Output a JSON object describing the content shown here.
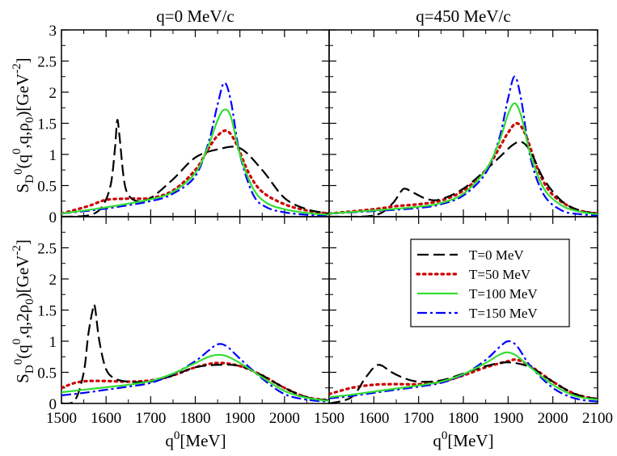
{
  "chart_data": {
    "type": "line",
    "panel_titles": [
      "q=0 MeV/c",
      "q=450 MeV/c"
    ],
    "ylabel_top": "S_D^0(q^0,q,ρ_0)[GeV^-2]",
    "ylabel_bottom": "S_D^0(q^0,q,2ρ_0)[GeV^-2]",
    "xlabel": "q^0[MeV]",
    "xlim": [
      1500,
      2100
    ],
    "ylim": [
      0,
      3
    ],
    "x_ticks": [
      "1500",
      "1600",
      "1700",
      "1800",
      "1900",
      "2000",
      "1500",
      "1600",
      "1700",
      "1800",
      "1900",
      "2000",
      "2100"
    ],
    "y_ticks_top": [
      "0",
      "0.5",
      "1",
      "1.5",
      "2",
      "2.5",
      "3"
    ],
    "y_ticks_bottom": [
      "0",
      "0.5",
      "1",
      "1.5",
      "2",
      "2.5"
    ],
    "legend_position": "lower-right panel, upper right",
    "series_styles": [
      {
        "name": "T=0 MeV",
        "color": "#000000",
        "dash": "dashed"
      },
      {
        "name": "T=50 MeV",
        "color": "#cc0000",
        "dash": "dotted"
      },
      {
        "name": "T=100 MeV",
        "color": "#33dd33",
        "dash": "solid"
      },
      {
        "name": "T=150 MeV",
        "color": "#0000ff",
        "dash": "dash-dot"
      }
    ],
    "panels": [
      {
        "row": 0,
        "col": 0,
        "series": [
          {
            "name": "T=0 MeV",
            "x": [
              1500,
              1560,
              1590,
              1610,
              1620,
              1625,
              1630,
              1640,
              1650,
              1670,
              1700,
              1750,
              1800,
              1850,
              1900,
              1950,
              2000,
              2050,
              2100
            ],
            "y": [
              0.0,
              0.02,
              0.15,
              0.5,
              1.1,
              1.55,
              1.3,
              0.6,
              0.35,
              0.25,
              0.3,
              0.6,
              0.95,
              1.08,
              1.1,
              0.75,
              0.3,
              0.12,
              0.05
            ]
          },
          {
            "name": "T=50 MeV",
            "x": [
              1500,
              1560,
              1600,
              1650,
              1700,
              1750,
              1800,
              1830,
              1850,
              1870,
              1890,
              1920,
              1950,
              2000,
              2050,
              2100
            ],
            "y": [
              0.05,
              0.17,
              0.27,
              0.29,
              0.3,
              0.42,
              0.75,
              1.1,
              1.3,
              1.38,
              1.2,
              0.7,
              0.4,
              0.2,
              0.1,
              0.05
            ]
          },
          {
            "name": "T=100 MeV",
            "x": [
              1500,
              1600,
              1700,
              1750,
              1800,
              1830,
              1850,
              1865,
              1880,
              1900,
              1930,
              1960,
              2000,
              2050,
              2100
            ],
            "y": [
              0.05,
              0.15,
              0.28,
              0.4,
              0.7,
              1.15,
              1.55,
              1.72,
              1.6,
              1.0,
              0.45,
              0.22,
              0.12,
              0.06,
              0.03
            ]
          },
          {
            "name": "T=150 MeV",
            "x": [
              1500,
              1600,
              1700,
              1750,
              1800,
              1830,
              1850,
              1865,
              1880,
              1900,
              1930,
              1960,
              2000,
              2050,
              2100
            ],
            "y": [
              0.05,
              0.13,
              0.25,
              0.37,
              0.65,
              1.2,
              1.8,
              2.15,
              1.85,
              1.0,
              0.35,
              0.15,
              0.07,
              0.03,
              0.02
            ]
          }
        ]
      },
      {
        "row": 0,
        "col": 1,
        "series": [
          {
            "name": "T=0 MeV",
            "x": [
              1500,
              1600,
              1640,
              1660,
              1670,
              1690,
              1720,
              1750,
              1800,
              1850,
              1880,
              1910,
              1930,
              1950,
              1980,
              2020,
              2060,
              2100
            ],
            "y": [
              0.0,
              0.02,
              0.2,
              0.4,
              0.45,
              0.38,
              0.28,
              0.28,
              0.45,
              0.75,
              0.95,
              1.15,
              1.2,
              1.05,
              0.6,
              0.25,
              0.1,
              0.05
            ]
          },
          {
            "name": "T=50 MeV",
            "x": [
              1500,
              1600,
              1650,
              1700,
              1750,
              1800,
              1850,
              1880,
              1900,
              1920,
              1940,
              1970,
              2000,
              2050,
              2100
            ],
            "y": [
              0.05,
              0.12,
              0.17,
              0.2,
              0.26,
              0.42,
              0.75,
              1.1,
              1.35,
              1.5,
              1.3,
              0.7,
              0.35,
              0.12,
              0.05
            ]
          },
          {
            "name": "T=100 MeV",
            "x": [
              1500,
              1600,
              1700,
              1750,
              1800,
              1850,
              1880,
              1900,
              1915,
              1930,
              1950,
              1980,
              2020,
              2060,
              2100
            ],
            "y": [
              0.05,
              0.1,
              0.16,
              0.22,
              0.37,
              0.75,
              1.2,
              1.65,
              1.82,
              1.6,
              1.0,
              0.45,
              0.18,
              0.08,
              0.04
            ]
          },
          {
            "name": "T=150 MeV",
            "x": [
              1500,
              1600,
              1700,
              1750,
              1800,
              1850,
              1880,
              1900,
              1915,
              1930,
              1950,
              1980,
              2020,
              2060,
              2100
            ],
            "y": [
              0.05,
              0.09,
              0.14,
              0.2,
              0.34,
              0.7,
              1.25,
              1.9,
              2.25,
              1.85,
              0.95,
              0.35,
              0.1,
              0.04,
              0.02
            ]
          }
        ]
      },
      {
        "row": 1,
        "col": 0,
        "series": [
          {
            "name": "T=0 MeV",
            "x": [
              1500,
              1530,
              1550,
              1560,
              1570,
              1575,
              1585,
              1600,
              1620,
              1650,
              1700,
              1750,
              1800,
              1850,
              1900,
              1950,
              2000,
              2050,
              2100
            ],
            "y": [
              0.0,
              0.05,
              0.5,
              1.1,
              1.5,
              1.55,
              1.0,
              0.55,
              0.4,
              0.35,
              0.35,
              0.45,
              0.58,
              0.62,
              0.6,
              0.45,
              0.25,
              0.1,
              0.05
            ]
          },
          {
            "name": "T=50 MeV",
            "x": [
              1500,
              1530,
              1560,
              1600,
              1650,
              1700,
              1750,
              1800,
              1850,
              1900,
              1950,
              2000,
              2050,
              2100
            ],
            "y": [
              0.25,
              0.33,
              0.36,
              0.36,
              0.35,
              0.37,
              0.45,
              0.58,
              0.65,
              0.6,
              0.45,
              0.25,
              0.1,
              0.05
            ]
          },
          {
            "name": "T=100 MeV",
            "x": [
              1500,
              1550,
              1600,
              1650,
              1700,
              1750,
              1800,
              1830,
              1850,
              1870,
              1900,
              1950,
              2000,
              2050,
              2100
            ],
            "y": [
              0.18,
              0.22,
              0.26,
              0.3,
              0.36,
              0.48,
              0.65,
              0.75,
              0.78,
              0.76,
              0.65,
              0.42,
              0.2,
              0.09,
              0.04
            ]
          },
          {
            "name": "T=150 MeV",
            "x": [
              1500,
              1550,
              1600,
              1650,
              1700,
              1750,
              1800,
              1830,
              1850,
              1870,
              1900,
              1950,
              2000,
              2050,
              2100
            ],
            "y": [
              0.13,
              0.17,
              0.22,
              0.27,
              0.33,
              0.47,
              0.68,
              0.85,
              0.95,
              0.92,
              0.72,
              0.4,
              0.15,
              0.06,
              0.03
            ]
          }
        ]
      },
      {
        "row": 1,
        "col": 1,
        "series": [
          {
            "name": "T=0 MeV",
            "x": [
              1500,
              1550,
              1580,
              1600,
              1610,
              1620,
              1640,
              1670,
              1700,
              1750,
              1800,
              1850,
              1900,
              1950,
              2000,
              2050,
              2100
            ],
            "y": [
              0.0,
              0.1,
              0.4,
              0.58,
              0.62,
              0.6,
              0.5,
              0.4,
              0.35,
              0.37,
              0.48,
              0.6,
              0.66,
              0.58,
              0.35,
              0.15,
              0.07
            ]
          },
          {
            "name": "T=50 MeV",
            "x": [
              1500,
              1550,
              1600,
              1650,
              1700,
              1750,
              1800,
              1850,
              1900,
              1920,
              1950,
              2000,
              2050,
              2100
            ],
            "y": [
              0.15,
              0.25,
              0.3,
              0.31,
              0.31,
              0.35,
              0.45,
              0.58,
              0.68,
              0.7,
              0.6,
              0.35,
              0.15,
              0.07
            ]
          },
          {
            "name": "T=100 MeV",
            "x": [
              1500,
              1550,
              1600,
              1650,
              1700,
              1750,
              1800,
              1850,
              1880,
              1900,
              1920,
              1950,
              2000,
              2050,
              2100
            ],
            "y": [
              0.1,
              0.14,
              0.19,
              0.24,
              0.29,
              0.35,
              0.47,
              0.65,
              0.78,
              0.82,
              0.76,
              0.58,
              0.3,
              0.12,
              0.06
            ]
          },
          {
            "name": "T=150 MeV",
            "x": [
              1500,
              1550,
              1600,
              1650,
              1700,
              1750,
              1800,
              1850,
              1880,
              1900,
              1920,
              1950,
              2000,
              2050,
              2100
            ],
            "y": [
              0.08,
              0.12,
              0.17,
              0.22,
              0.27,
              0.33,
              0.46,
              0.7,
              0.9,
              1.0,
              0.92,
              0.6,
              0.25,
              0.08,
              0.03
            ]
          }
        ]
      }
    ]
  }
}
